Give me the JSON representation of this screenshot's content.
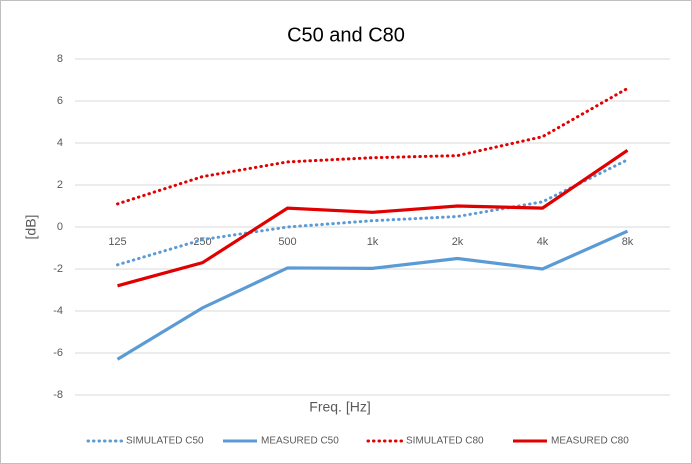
{
  "chart_data": {
    "type": "line",
    "title": "C50 and C80",
    "xlabel": "Freq. [Hz]",
    "ylabel": "[dB]",
    "categories": [
      "125",
      "250",
      "500",
      "1k",
      "2k",
      "4k",
      "8k"
    ],
    "series": [
      {
        "name": "SIMULATED C50",
        "color": "#5b9bd5",
        "dash": "dotted",
        "values": [
          -1.8,
          -0.6,
          0.0,
          0.3,
          0.5,
          1.2,
          3.2
        ]
      },
      {
        "name": "MEASURED C50",
        "color": "#5b9bd5",
        "dash": "solid",
        "values": [
          -6.3,
          -3.85,
          -1.95,
          -1.97,
          -1.5,
          -2.0,
          -0.2
        ]
      },
      {
        "name": "SIMULATED C80",
        "color": "#e00000",
        "dash": "dotted",
        "values": [
          1.1,
          2.4,
          3.1,
          3.3,
          3.4,
          4.3,
          6.6
        ]
      },
      {
        "name": "MEASURED C80",
        "color": "#e00000",
        "dash": "solid",
        "values": [
          -2.8,
          -1.7,
          0.9,
          0.7,
          1.0,
          0.9,
          3.65
        ]
      }
    ],
    "ylim": [
      -8,
      8
    ],
    "yticks": [
      -8,
      -6,
      -4,
      -2,
      0,
      2,
      4,
      6,
      8
    ],
    "grid": true,
    "legend": "bottom"
  }
}
